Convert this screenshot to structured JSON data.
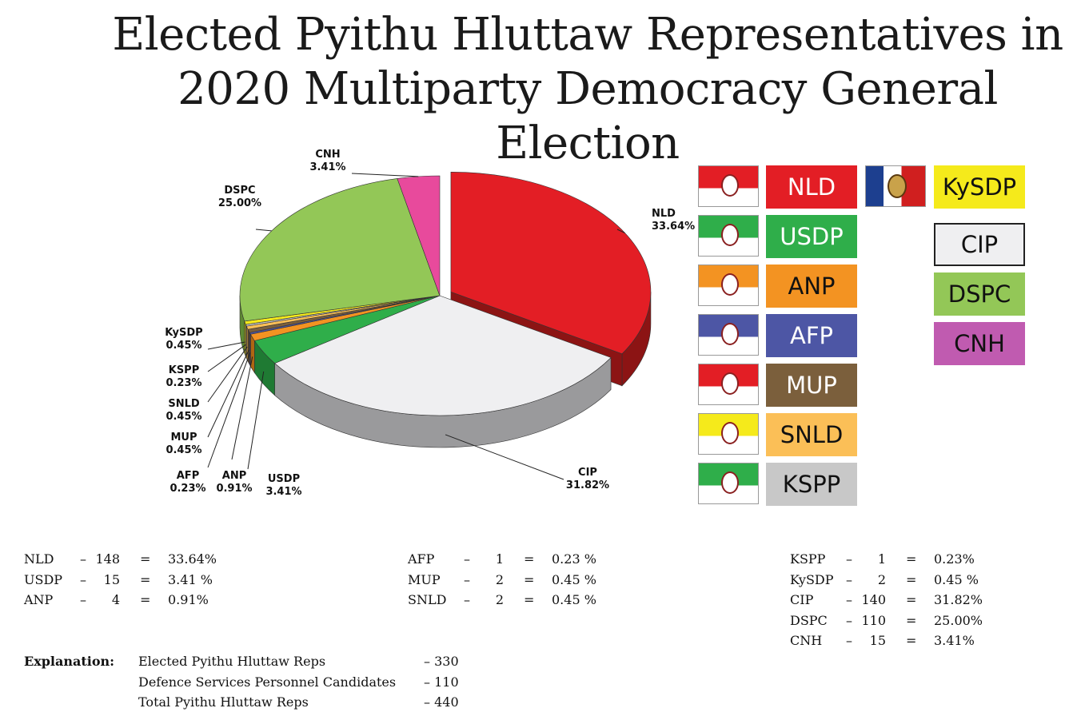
{
  "title": {
    "line1": "Elected Pyithu Hluttaw Representatives in",
    "line2": "2020 Multiparty Democracy General Election"
  },
  "chart_data": {
    "type": "pie",
    "title": "Elected Pyithu Hluttaw Representatives in 2020 Multiparty Democracy General Election",
    "slices": [
      {
        "label": "NLD",
        "percent": 33.64,
        "seats": 148,
        "color": "#e31e25",
        "side": "#8c1414",
        "value_label": "33.64%"
      },
      {
        "label": "CIP",
        "percent": 31.82,
        "seats": 140,
        "color": "#efeff1",
        "side": "#9a9a9c",
        "value_label": "31.82%"
      },
      {
        "label": "USDP",
        "percent": 3.41,
        "seats": 15,
        "color": "#2fae4a",
        "side": "#1f7a33",
        "value_label": "3.41%"
      },
      {
        "label": "ANP",
        "percent": 0.91,
        "seats": 4,
        "color": "#f39322",
        "side": "#b06612",
        "value_label": "0.91%"
      },
      {
        "label": "AFP",
        "percent": 0.23,
        "seats": 1,
        "color": "#4d56a5",
        "side": "#343a73",
        "value_label": "0.23%"
      },
      {
        "label": "MUP",
        "percent": 0.45,
        "seats": 2,
        "color": "#7b5f3c",
        "side": "#54412a",
        "value_label": "0.45%"
      },
      {
        "label": "SNLD",
        "percent": 0.45,
        "seats": 2,
        "color": "#fbbf57",
        "side": "#b3873a",
        "value_label": "0.45%"
      },
      {
        "label": "KSPP",
        "percent": 0.23,
        "seats": 1,
        "color": "#c8c8c8",
        "side": "#8a8a8a",
        "value_label": "0.23%"
      },
      {
        "label": "KySDP",
        "percent": 0.45,
        "seats": 2,
        "color": "#f5ea1b",
        "side": "#aaa20f",
        "value_label": "0.45%"
      },
      {
        "label": "DSPC",
        "percent": 25.0,
        "seats": 110,
        "color": "#93c757",
        "side": "#5f8a33",
        "value_label": "25.00%"
      },
      {
        "label": "CNH",
        "percent": 3.41,
        "seats": 15,
        "color": "#e84a9c",
        "side": "#9e2f69",
        "value_label": "3.41%"
      }
    ]
  },
  "legend": {
    "items": [
      {
        "label": "NLD",
        "color": "#e31e25",
        "text_color": "#ffffff"
      },
      {
        "label": "KySDP",
        "color": "#f5ea1b",
        "text_color": "#111111"
      },
      {
        "label": "USDP",
        "color": "#2fae4a",
        "text_color": "#ffffff"
      },
      {
        "label": "CIP",
        "color": "#efeff1",
        "text_color": "#111111"
      },
      {
        "label": "ANP",
        "color": "#f39322",
        "text_color": "#111111"
      },
      {
        "label": "DSPC",
        "color": "#93c757",
        "text_color": "#111111"
      },
      {
        "label": "AFP",
        "color": "#4d56a5",
        "text_color": "#ffffff"
      },
      {
        "label": "CNH",
        "color": "#c05bb0",
        "text_color": "#111111"
      },
      {
        "label": "MUP",
        "color": "#7b5f3c",
        "text_color": "#ffffff"
      },
      {
        "label": "SNLD",
        "color": "#fbbf57",
        "text_color": "#111111"
      },
      {
        "label": "KSPP",
        "color": "#c8c8c8",
        "text_color": "#111111"
      }
    ]
  },
  "tables": {
    "col1": [
      {
        "party": "NLD",
        "dash": "–",
        "seats": "148",
        "eq": "=",
        "pct": "33.64%"
      },
      {
        "party": "USDP",
        "dash": "–",
        "seats": "15",
        "eq": "=",
        "pct": "3.41 %"
      },
      {
        "party": "ANP",
        "dash": "–",
        "seats": "4",
        "eq": "=",
        "pct": "0.91%"
      }
    ],
    "col2": [
      {
        "party": "AFP",
        "dash": "–",
        "seats": "1",
        "eq": "=",
        "pct": "0.23 %"
      },
      {
        "party": "MUP",
        "dash": "–",
        "seats": "2",
        "eq": "=",
        "pct": "0.45 %"
      },
      {
        "party": "SNLD",
        "dash": "–",
        "seats": "2",
        "eq": "=",
        "pct": "0.45 %"
      }
    ],
    "col3": [
      {
        "party": "KSPP",
        "dash": "–",
        "seats": "1",
        "eq": "=",
        "pct": "0.23%"
      },
      {
        "party": "KySDP",
        "dash": "–",
        "seats": "2",
        "eq": "=",
        "pct": "0.45 %"
      },
      {
        "party": "CIP",
        "dash": "–",
        "seats": "140",
        "eq": "=",
        "pct": "31.82%"
      },
      {
        "party": "DSPC",
        "dash": "–",
        "seats": "110",
        "eq": "=",
        "pct": "25.00%"
      },
      {
        "party": "CNH",
        "dash": "–",
        "seats": "15",
        "eq": "=",
        "pct": "3.41%"
      }
    ]
  },
  "explanation": {
    "label": "Explanation:",
    "rows": [
      {
        "text": "Elected Pyithu Hluttaw Reps",
        "value": "– 330"
      },
      {
        "text": "Defence Services Personnel Candidates",
        "value": "– 110"
      },
      {
        "text": "Total Pyithu Hluttaw Reps",
        "value": "– 440"
      }
    ]
  }
}
